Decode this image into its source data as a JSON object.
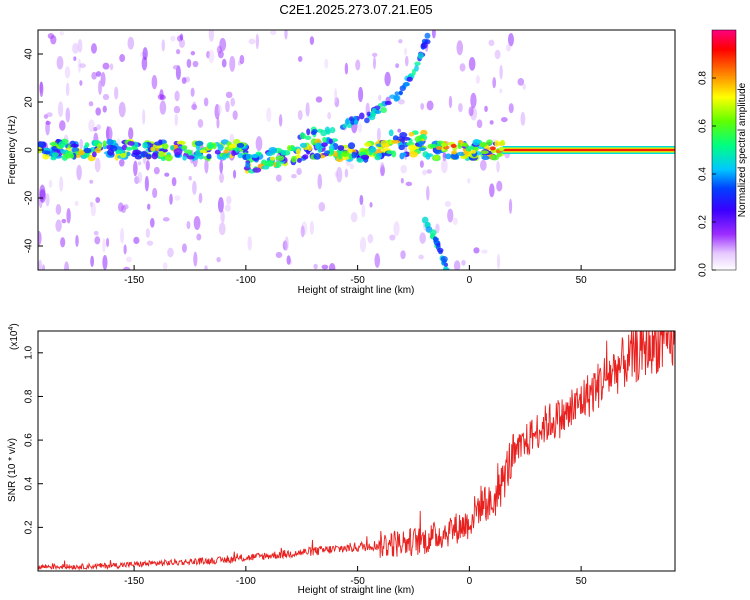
{
  "figure": {
    "title": "C2E1.2025.273.07.21.E05"
  },
  "chart_data": [
    {
      "type": "heatmap",
      "title": "",
      "xlabel": "Height of straight line (km)",
      "ylabel": "Frequency (Hz)",
      "xlim": [
        -193,
        92
      ],
      "ylim": [
        -50,
        50
      ],
      "xticks": [
        -150,
        -100,
        -50,
        0,
        50
      ],
      "yticks": [
        -40,
        -20,
        0,
        20,
        40
      ],
      "colorbar": {
        "label": "Normalized spectral amplitude",
        "range": [
          0,
          1
        ],
        "ticks": [
          0.0,
          0.2,
          0.4,
          0.6,
          0.8
        ]
      },
      "features": {
        "carrier_line": {
          "x_start": 15,
          "x_end": 92,
          "frequency": 0,
          "amplitude": 0.9
        },
        "main_band": {
          "x_range": [
            -193,
            15
          ],
          "frequency_center": 0,
          "amplitude_range": [
            0.3,
            0.7
          ]
        },
        "upper_branch": {
          "x": [
            -80,
            -60,
            -45,
            -35,
            -25,
            -18
          ],
          "frequency": [
            4,
            10,
            14,
            20,
            32,
            48
          ]
        },
        "lower_branch": {
          "x": [
            -20,
            -14,
            -10
          ],
          "frequency": [
            -28,
            -40,
            -50
          ]
        }
      }
    },
    {
      "type": "line",
      "title": "",
      "xlabel": "Height of straight line (km)",
      "ylabel": "SNR (10 * v/v)",
      "y_multiplier_label": "(x10",
      "y_multiplier_exponent": "4",
      "y_multiplier_close": ")",
      "xlim": [
        -193,
        92
      ],
      "ylim": [
        0,
        1.1
      ],
      "xticks": [
        -150,
        -100,
        -50,
        0,
        50
      ],
      "yticks": [
        0.2,
        0.4,
        0.6,
        0.8,
        1.0
      ],
      "series": [
        {
          "color": "#e8201e",
          "x": [
            -193,
            -175,
            -160,
            -150,
            -140,
            -130,
            -120,
            -110,
            -100,
            -90,
            -80,
            -70,
            -60,
            -50,
            -40,
            -30,
            -20,
            -15,
            -10,
            -5,
            0,
            3,
            6,
            10,
            14,
            18,
            22,
            26,
            30,
            35,
            40,
            45,
            50,
            55,
            60,
            65,
            70,
            75,
            80,
            85,
            92
          ],
          "y": [
            0.02,
            0.02,
            0.025,
            0.03,
            0.035,
            0.04,
            0.045,
            0.05,
            0.06,
            0.07,
            0.08,
            0.09,
            0.1,
            0.11,
            0.12,
            0.13,
            0.14,
            0.16,
            0.18,
            0.2,
            0.22,
            0.28,
            0.32,
            0.3,
            0.38,
            0.5,
            0.55,
            0.6,
            0.64,
            0.68,
            0.7,
            0.72,
            0.78,
            0.82,
            0.88,
            0.92,
            0.96,
            0.99,
            1.03,
            1.04,
            1.05
          ]
        }
      ]
    }
  ]
}
